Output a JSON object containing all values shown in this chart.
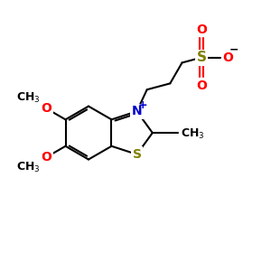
{
  "bg_color": "#ffffff",
  "bond_color": "#000000",
  "N_color": "#0000cc",
  "S_sulf_color": "#808000",
  "S_ring_color": "#808000",
  "O_color": "#ff0000",
  "font_size": 9,
  "lw": 1.5,
  "fig_w": 3.0,
  "fig_h": 3.0,
  "dpi": 100,
  "xlim": [
    0,
    10
  ],
  "ylim": [
    0,
    10
  ]
}
